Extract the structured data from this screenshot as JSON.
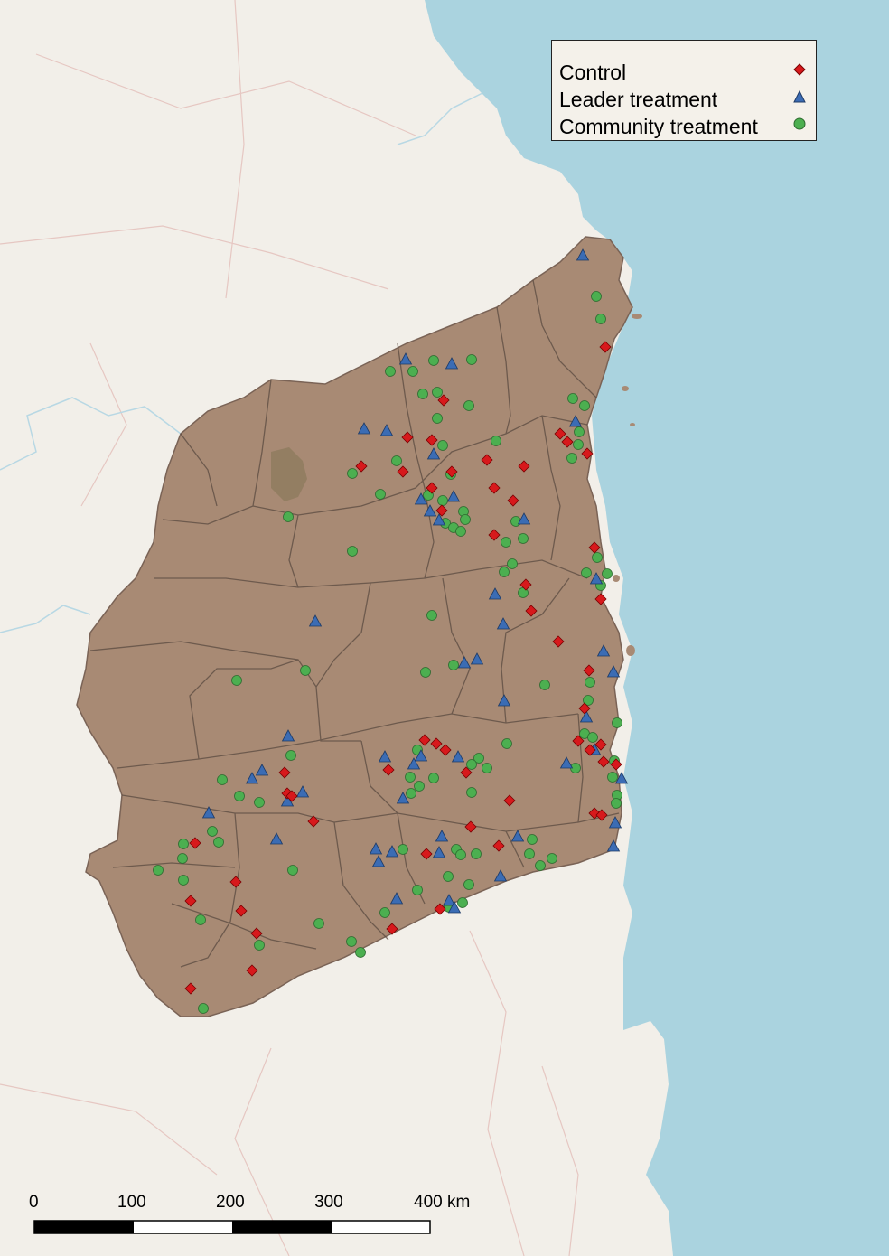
{
  "legend": {
    "items": [
      {
        "label": "Control",
        "icon": "red-diamond-icon",
        "color": "#d7191c"
      },
      {
        "label": "Leader treatment",
        "icon": "blue-triangle-icon",
        "color": "#3b6cb4"
      },
      {
        "label": "Community treatment",
        "icon": "green-circle-icon",
        "color": "#4caf50"
      }
    ]
  },
  "scale_bar": {
    "labels": [
      "0",
      "100",
      "200",
      "300",
      "400 km"
    ]
  },
  "colors": {
    "region": "#a88a74",
    "sea": "#aad3df",
    "land": "#f2efe9",
    "border": "#5a4a40"
  }
}
